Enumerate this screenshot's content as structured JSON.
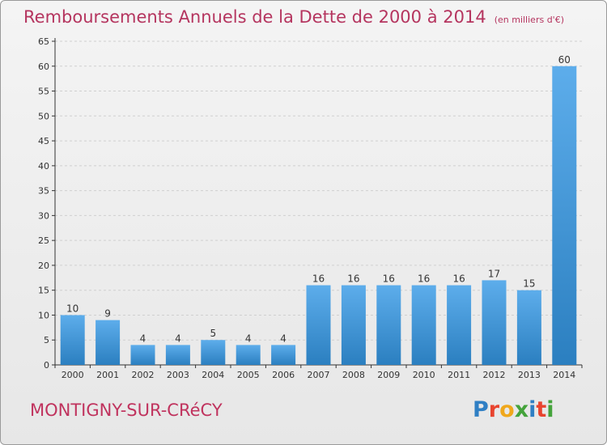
{
  "title": "Remboursements Annuels de la Dette de 2000 à 2014",
  "subtitle": "(en milliers d'€)",
  "commune": "MONTIGNY-SUR-CRéCY",
  "logo": {
    "text": "Proxiti",
    "colors": [
      "#2f7fc4",
      "#e8442f",
      "#f0a81c",
      "#44a33b",
      "#2f7fc4",
      "#e8442f",
      "#44a33b"
    ]
  },
  "colors": {
    "title": "#b5355f",
    "bar_top": "#5dadeb",
    "bar_bottom": "#2b7fc0",
    "axis": "#333333",
    "grid": "#cfcfcf"
  },
  "chart_data": {
    "type": "bar",
    "categories": [
      "2000",
      "2001",
      "2002",
      "2003",
      "2004",
      "2005",
      "2006",
      "2007",
      "2008",
      "2009",
      "2010",
      "2011",
      "2012",
      "2013",
      "2014"
    ],
    "values": [
      10,
      9,
      4,
      4,
      5,
      4,
      4,
      16,
      16,
      16,
      16,
      16,
      17,
      15,
      60
    ],
    "data_labels": [
      "10",
      "9",
      "4",
      "4",
      "5",
      "4",
      "4",
      "16",
      "16",
      "16",
      "16",
      "16",
      "17",
      "15",
      "60"
    ],
    "ylim": [
      0,
      65
    ],
    "yticks": [
      0,
      5,
      10,
      15,
      20,
      25,
      30,
      35,
      40,
      45,
      50,
      55,
      60,
      65
    ],
    "grid": true
  }
}
